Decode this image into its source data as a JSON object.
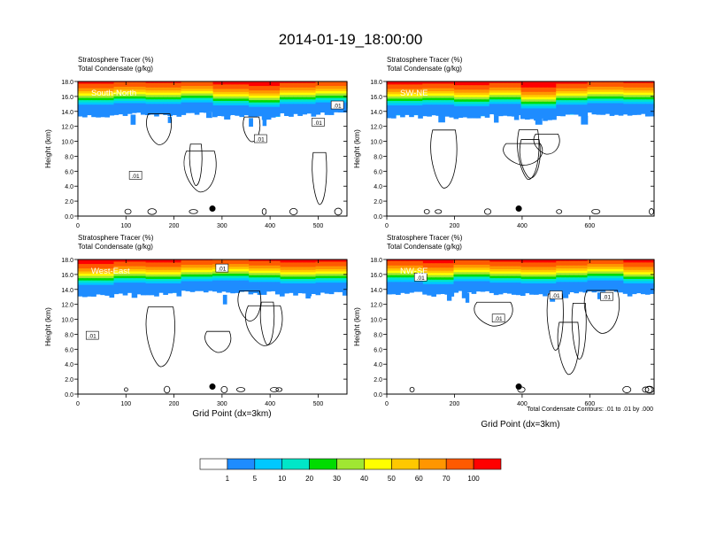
{
  "chart_data": {
    "type": "heatmap",
    "title": "2014-01-19_18:00:00",
    "xlabel": "Grid Point (dx=3km)",
    "ylabel": "Height (km)",
    "footnote": "Total Condensate Contours: .01 to .01 by .000",
    "colorbar": {
      "levels": [
        "1",
        "5",
        "10",
        "20",
        "30",
        "40",
        "50",
        "60",
        "70",
        "100"
      ],
      "colors": [
        "#ffffff",
        "#1e8cff",
        "#00c8ff",
        "#00e6c8",
        "#00dc00",
        "#a0e632",
        "#ffff00",
        "#ffc800",
        "#ff9600",
        "#ff5a00",
        "#ff0000"
      ]
    },
    "y_ticks": [
      "0.0",
      "2.0",
      "4.0",
      "6.0",
      "8.0",
      "10.0",
      "12.0",
      "14.0",
      "16.0",
      "18.0"
    ],
    "ylim": [
      0,
      18
    ],
    "panels": [
      {
        "name": "South-North",
        "label": "South-North",
        "header_line1": "Stratosphere Tracer   (%)",
        "header_line2": "Total Condensate   (g/kg)",
        "xlim": [
          0,
          560
        ],
        "x_ticks": [
          "0",
          "100",
          "200",
          "300",
          "400",
          "500"
        ],
        "x_tick_values": [
          0,
          100,
          200,
          300,
          400,
          500
        ],
        "marker": {
          "x": 280,
          "y": 1.0
        },
        "tracer_top_km": [
          16.3,
          16.5,
          16.4,
          16.6,
          16.2,
          16.0,
          16.4,
          16.6
        ],
        "contour_labels": [
          {
            "text": ".01",
            "x": 120,
            "y": 5.4
          },
          {
            "text": ".01",
            "x": 380,
            "y": 10.3
          },
          {
            "text": ".01",
            "x": 500,
            "y": 12.5
          },
          {
            "text": ".01",
            "x": 540,
            "y": 14.8
          }
        ]
      },
      {
        "name": "SW-NE",
        "label": "SW-NE",
        "header_line1": "Stratosphere Tracer   (%)",
        "header_line2": "Total Condensate   (g/kg)",
        "xlim": [
          0,
          790
        ],
        "x_ticks": [
          "0",
          "200",
          "400",
          "600"
        ],
        "x_tick_values": [
          0,
          200,
          400,
          600
        ],
        "marker": {
          "x": 390,
          "y": 1.0
        },
        "tracer_top_km": [
          16.2,
          16.3,
          16.1,
          16.4,
          15.8,
          16.3,
          16.5,
          16.4
        ],
        "contour_labels": []
      },
      {
        "name": "West-East",
        "label": "West-East",
        "header_line1": "Stratosphere Tracer   (%)",
        "header_line2": "Total Condensate   (g/kg)",
        "xlim": [
          0,
          560
        ],
        "x_ticks": [
          "0",
          "100",
          "200",
          "300",
          "400",
          "500"
        ],
        "x_tick_values": [
          0,
          100,
          200,
          300,
          400,
          500
        ],
        "marker": {
          "x": 280,
          "y": 1.0
        },
        "tracer_top_km": [
          16.0,
          16.3,
          16.2,
          16.5,
          16.6,
          16.4,
          16.2,
          16.3
        ],
        "contour_labels": [
          {
            "text": ".01",
            "x": 30,
            "y": 7.8
          },
          {
            "text": ".01",
            "x": 300,
            "y": 16.8
          }
        ]
      },
      {
        "name": "NW-SE",
        "label": "NW-SE",
        "header_line1": "Stratosphere Tracer   (%)",
        "header_line2": "Total Condensate   (g/kg)",
        "xlim": [
          0,
          790
        ],
        "x_ticks": [
          "0",
          "200",
          "400",
          "600"
        ],
        "x_tick_values": [
          0,
          200,
          400,
          600
        ],
        "marker": {
          "x": 390,
          "y": 1.0
        },
        "tracer_top_km": [
          16.4,
          16.1,
          16.5,
          16.3,
          16.2,
          16.4,
          16.6,
          16.2
        ],
        "contour_labels": [
          {
            "text": ".01",
            "x": 100,
            "y": 15.6
          },
          {
            "text": ".01",
            "x": 330,
            "y": 10.1
          },
          {
            "text": ".01",
            "x": 500,
            "y": 13.2
          },
          {
            "text": ".01",
            "x": 650,
            "y": 13.0
          }
        ]
      }
    ]
  }
}
